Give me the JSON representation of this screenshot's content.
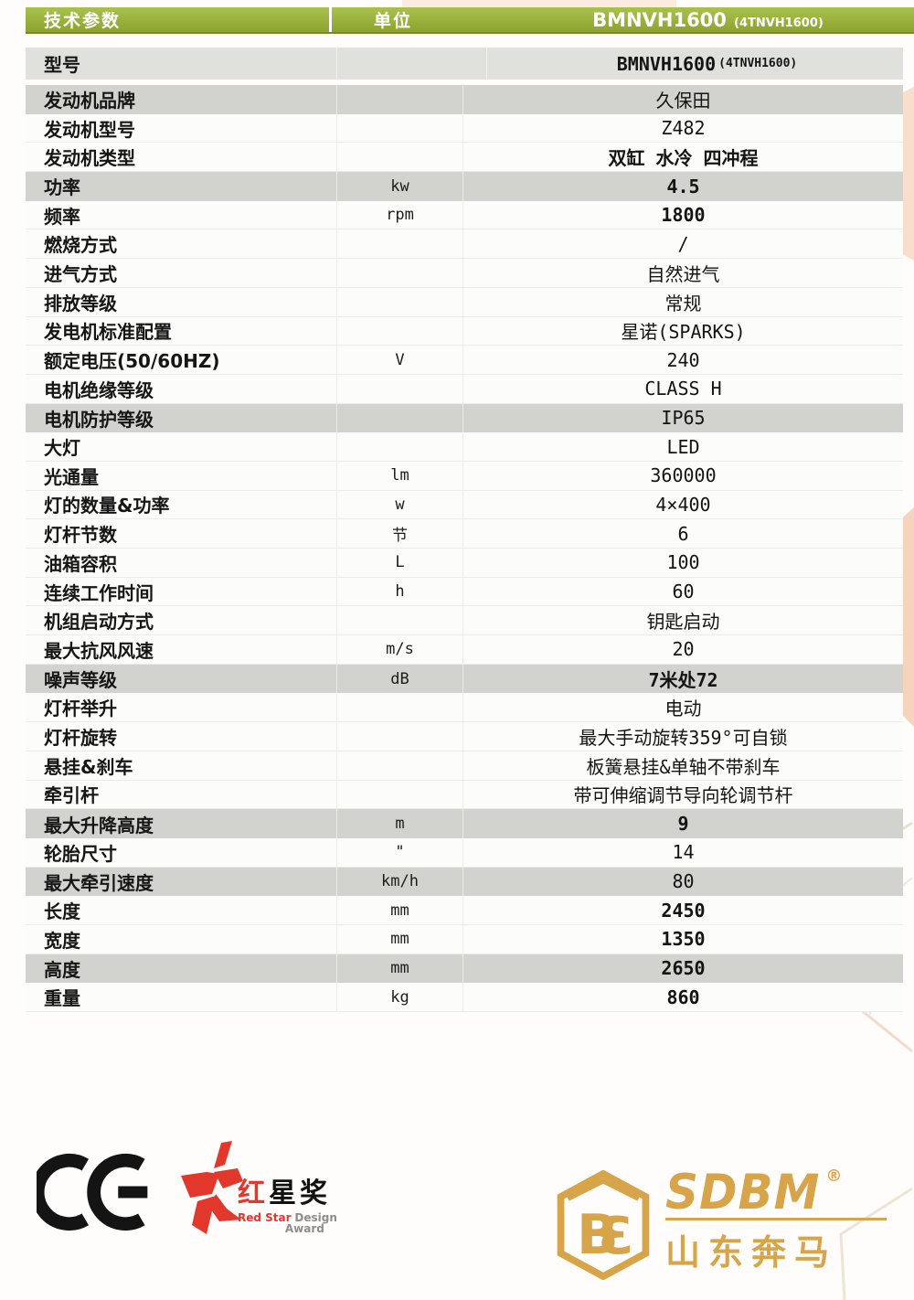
{
  "colors": {
    "header_green": "#98b135",
    "shaded_row_grey": "#d2d2ce",
    "accent_peach": "#f6d6bd",
    "redstar_red": "#e2382c",
    "sdbm_gold": "#d7a44a"
  },
  "table": {
    "header": {
      "param": "技术参数",
      "unit": "单位",
      "model": "BMNVH1600",
      "model_sub": "(4TNVH1600)"
    },
    "rows": [
      {
        "label": "型号",
        "unit": "",
        "value": "BMNVH1600",
        "value_small": "(4TNVH1600)",
        "shade": "light",
        "bold": true
      },
      {
        "label": "发动机品牌",
        "unit": "",
        "value": "久保田",
        "shade": "grey"
      },
      {
        "label": "发动机型号",
        "unit": "",
        "value": "Z482"
      },
      {
        "label": "发动机类型",
        "unit": "",
        "value": "双缸  水冷 四冲程",
        "bold": true
      },
      {
        "label": "功率",
        "unit": "kw",
        "value": "4.5",
        "shade": "grey",
        "bold": true
      },
      {
        "label": "频率",
        "unit": "rpm",
        "value": "1800",
        "bold": true
      },
      {
        "label": "燃烧方式",
        "unit": "",
        "value": "/"
      },
      {
        "label": "进气方式",
        "unit": "",
        "value": "自然进气"
      },
      {
        "label": "排放等级",
        "unit": "",
        "value": "常规"
      },
      {
        "label": "发电机标准配置",
        "unit": "",
        "value": "星诺(SPARKS)"
      },
      {
        "label": "额定电压(50/60HZ)",
        "unit": "V",
        "value": "240"
      },
      {
        "label": "电机绝缘等级",
        "unit": "",
        "value": "CLASS H"
      },
      {
        "label": "电机防护等级",
        "unit": "",
        "value": "IP65",
        "shade": "grey"
      },
      {
        "label": "大灯",
        "unit": "",
        "value": "LED"
      },
      {
        "label": "光通量",
        "unit": "lm",
        "value": "360000"
      },
      {
        "label": "灯的数量&功率",
        "unit": "w",
        "value": "4×400"
      },
      {
        "label": "灯杆节数",
        "unit": "节",
        "value": "6"
      },
      {
        "label": "油箱容积",
        "unit": "L",
        "value": "100"
      },
      {
        "label": "连续工作时间",
        "unit": "h",
        "value": "60"
      },
      {
        "label": "机组启动方式",
        "unit": "",
        "value": "钥匙启动"
      },
      {
        "label": "最大抗风风速",
        "unit": "m/s",
        "value": "20"
      },
      {
        "label": "噪声等级",
        "unit": "dB",
        "value": "7米处72",
        "shade": "grey",
        "bold": true
      },
      {
        "label": "灯杆举升",
        "unit": "",
        "value": "电动"
      },
      {
        "label": "灯杆旋转",
        "unit": "",
        "value": "最大手动旋转359°可自锁"
      },
      {
        "label": "悬挂&刹车",
        "unit": "",
        "value": "板簧悬挂&单轴不带刹车"
      },
      {
        "label": "牵引杆",
        "unit": "",
        "value": "带可伸缩调节导向轮调节杆"
      },
      {
        "label": "最大升降高度",
        "unit": "m",
        "value": "9",
        "shade": "grey",
        "bold": true
      },
      {
        "label": "轮胎尺寸",
        "unit": "\"",
        "value": "14"
      },
      {
        "label": "最大牵引速度",
        "unit": "km/h",
        "value": "80",
        "shade": "grey"
      },
      {
        "label": "长度",
        "unit": "mm",
        "value": "2450",
        "bold": true
      },
      {
        "label": "宽度",
        "unit": "mm",
        "value": "1350",
        "bold": true
      },
      {
        "label": "高度",
        "unit": "mm",
        "value": "2650",
        "shade": "grey",
        "bold": true
      },
      {
        "label": "重量",
        "unit": "kg",
        "value": "860",
        "bold": true
      }
    ]
  },
  "footer": {
    "ce_label": "CE",
    "redstar": {
      "cn_first": "红",
      "cn_rest": "星奖",
      "en_bold": "Red Star",
      "en_mid": "Design",
      "en_award": "Award"
    },
    "sdbm": {
      "monogram_b": "B",
      "monogram_3": "3",
      "wordmark": "SDBM",
      "reg": "®",
      "cn": "山东奔马"
    }
  }
}
